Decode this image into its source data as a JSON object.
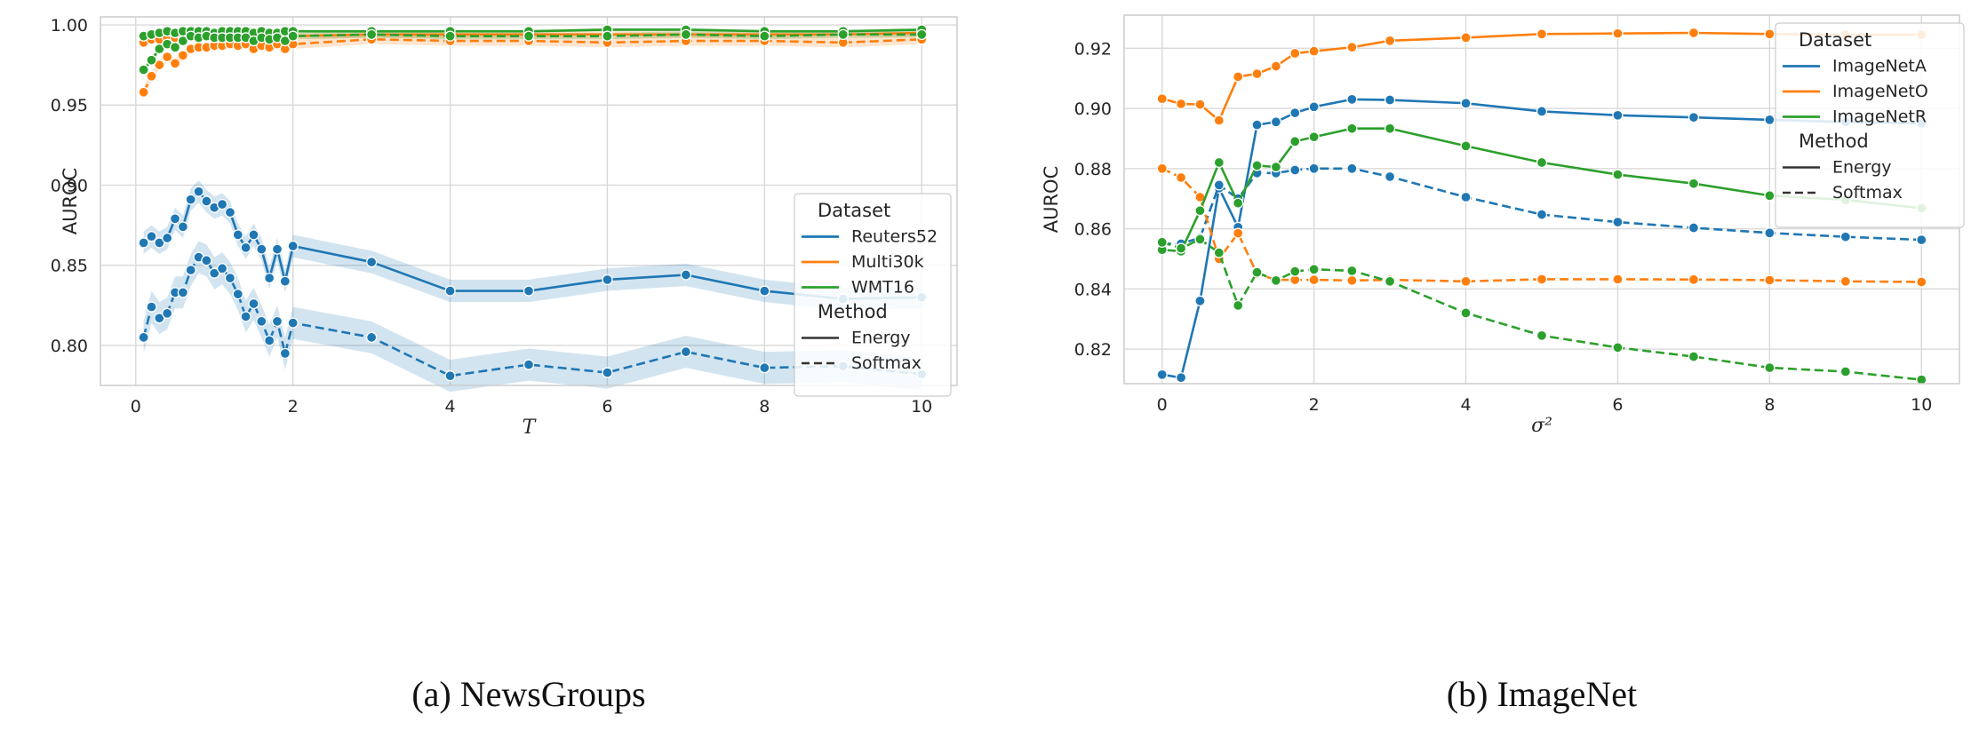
{
  "chart_data": [
    {
      "type": "line",
      "caption": "(a) NewsGroups",
      "xlabel": "T",
      "ylabel": "AUROC",
      "xlim": [
        -0.45,
        10.45
      ],
      "ylim": [
        0.775,
        1.005
      ],
      "xticks": [
        0,
        2,
        4,
        6,
        8,
        10
      ],
      "xtick_labels": [
        "0",
        "2",
        "4",
        "6",
        "8",
        "10"
      ],
      "yticks": [
        0.8,
        0.85,
        0.9,
        0.95,
        1.0
      ],
      "ytick_labels": [
        "0.80",
        "0.85",
        "0.90",
        "0.95",
        "1.00"
      ],
      "grid": true,
      "legend": {
        "placement": "center-right",
        "dataset_title": "Dataset",
        "method_title": "Method",
        "datasets": [
          "Reuters52",
          "Multi30k",
          "WMT16"
        ],
        "methods": [
          "Energy",
          "Softmax"
        ]
      },
      "x": [
        0.1,
        0.2,
        0.3,
        0.4,
        0.5,
        0.6,
        0.7,
        0.8,
        0.9,
        1.0,
        1.1,
        1.2,
        1.3,
        1.4,
        1.5,
        1.6,
        1.7,
        1.8,
        1.9,
        2,
        3,
        4,
        5,
        6,
        7,
        8,
        9,
        10
      ],
      "series": [
        {
          "dataset": "Reuters52",
          "method": "Energy",
          "color": "#1f77b4",
          "dash": "solid",
          "values": [
            0.864,
            0.868,
            0.864,
            0.867,
            0.879,
            0.874,
            0.891,
            0.896,
            0.89,
            0.886,
            0.888,
            0.883,
            0.869,
            0.861,
            0.869,
            0.86,
            0.842,
            0.86,
            0.84,
            0.862,
            0.852,
            0.834,
            0.834,
            0.841,
            0.844,
            0.834,
            0.829,
            0.83
          ],
          "band": 0.007
        },
        {
          "dataset": "Reuters52",
          "method": "Softmax",
          "color": "#1f77b4",
          "dash": "dashed",
          "values": [
            0.805,
            0.824,
            0.817,
            0.82,
            0.833,
            0.833,
            0.847,
            0.855,
            0.853,
            0.845,
            0.848,
            0.842,
            0.832,
            0.818,
            0.826,
            0.815,
            0.803,
            0.815,
            0.795,
            0.814,
            0.805,
            0.781,
            0.788,
            0.783,
            0.796,
            0.786,
            0.787,
            0.782
          ],
          "band": 0.01
        },
        {
          "dataset": "Multi30k",
          "method": "Energy",
          "color": "#ff7f0e",
          "dash": "solid",
          "values": [
            0.989,
            0.991,
            0.991,
            0.992,
            0.992,
            0.992,
            0.993,
            0.993,
            0.993,
            0.993,
            0.993,
            0.993,
            0.993,
            0.993,
            0.993,
            0.993,
            0.993,
            0.993,
            0.993,
            0.993,
            0.994,
            0.994,
            0.994,
            0.994,
            0.994,
            0.994,
            0.994,
            0.995
          ],
          "band": 0.002
        },
        {
          "dataset": "Multi30k",
          "method": "Softmax",
          "color": "#ff7f0e",
          "dash": "dashed",
          "values": [
            0.958,
            0.968,
            0.975,
            0.98,
            0.976,
            0.981,
            0.985,
            0.986,
            0.986,
            0.987,
            0.987,
            0.988,
            0.987,
            0.988,
            0.985,
            0.987,
            0.986,
            0.988,
            0.985,
            0.988,
            0.991,
            0.99,
            0.99,
            0.989,
            0.99,
            0.99,
            0.989,
            0.991
          ],
          "band": 0.003
        },
        {
          "dataset": "WMT16",
          "method": "Energy",
          "color": "#2ca02c",
          "dash": "solid",
          "values": [
            0.993,
            0.994,
            0.995,
            0.996,
            0.995,
            0.996,
            0.996,
            0.996,
            0.996,
            0.995,
            0.996,
            0.996,
            0.996,
            0.996,
            0.995,
            0.996,
            0.995,
            0.995,
            0.996,
            0.996,
            0.996,
            0.996,
            0.996,
            0.997,
            0.997,
            0.996,
            0.996,
            0.997
          ],
          "band": 0.001
        },
        {
          "dataset": "WMT16",
          "method": "Softmax",
          "color": "#2ca02c",
          "dash": "dashed",
          "values": [
            0.972,
            0.978,
            0.985,
            0.988,
            0.986,
            0.99,
            0.993,
            0.992,
            0.993,
            0.992,
            0.992,
            0.992,
            0.992,
            0.992,
            0.99,
            0.992,
            0.991,
            0.992,
            0.99,
            0.993,
            0.994,
            0.993,
            0.993,
            0.993,
            0.994,
            0.993,
            0.994,
            0.994
          ],
          "band": 0.002
        }
      ]
    },
    {
      "type": "line",
      "caption": "(b) ImageNet",
      "xlabel": "σ²",
      "ylabel": "AUROC",
      "xlim": [
        -0.5,
        10.5
      ],
      "ylim": [
        0.8085,
        0.931
      ],
      "xticks": [
        0,
        2,
        4,
        6,
        8,
        10
      ],
      "xtick_labels": [
        "0",
        "2",
        "4",
        "6",
        "8",
        "10"
      ],
      "yticks": [
        0.82,
        0.84,
        0.86,
        0.88,
        0.9,
        0.92
      ],
      "ytick_labels": [
        "0.82",
        "0.84",
        "0.86",
        "0.88",
        "0.90",
        "0.92"
      ],
      "grid": true,
      "legend": {
        "placement": "top-right",
        "dataset_title": "Dataset",
        "method_title": "Method",
        "datasets": [
          "ImageNetA",
          "ImageNetO",
          "ImageNetR"
        ],
        "methods": [
          "Energy",
          "Softmax"
        ]
      },
      "x": [
        0,
        0.25,
        0.5,
        0.75,
        1.0,
        1.25,
        1.5,
        1.75,
        2,
        2.5,
        3,
        4,
        5,
        6,
        7,
        8,
        9,
        10
      ],
      "series": [
        {
          "dataset": "ImageNetA",
          "method": "Energy",
          "color": "#1f77b4",
          "dash": "solid",
          "values": [
            0.8115,
            0.8105,
            0.836,
            0.8735,
            0.8605,
            0.8945,
            0.8955,
            0.8985,
            0.9005,
            0.903,
            0.9028,
            0.9017,
            0.899,
            0.8977,
            0.897,
            0.8962,
            0.8955,
            0.895
          ]
        },
        {
          "dataset": "ImageNetA",
          "method": "Softmax",
          "color": "#1f77b4",
          "dash": "dashed",
          "values": [
            0.855,
            0.855,
            0.857,
            0.8745,
            0.87,
            0.8785,
            0.8785,
            0.8795,
            0.88,
            0.88,
            0.8773,
            0.8705,
            0.8647,
            0.8622,
            0.8603,
            0.8586,
            0.8573,
            0.8563
          ]
        },
        {
          "dataset": "ImageNetO",
          "method": "Energy",
          "color": "#ff7f0e",
          "dash": "solid",
          "values": [
            0.9032,
            0.9015,
            0.9013,
            0.896,
            0.9105,
            0.9115,
            0.914,
            0.9183,
            0.919,
            0.9203,
            0.9225,
            0.9235,
            0.9247,
            0.9249,
            0.9251,
            0.9247,
            0.9245,
            0.9245
          ]
        },
        {
          "dataset": "ImageNetO",
          "method": "Softmax",
          "color": "#ff7f0e",
          "dash": "dashed",
          "values": [
            0.88,
            0.877,
            0.8705,
            0.85,
            0.8585,
            0.845,
            0.843,
            0.843,
            0.843,
            0.8428,
            0.843,
            0.8425,
            0.8432,
            0.8432,
            0.8431,
            0.8429,
            0.8425,
            0.8423
          ]
        },
        {
          "dataset": "ImageNetR",
          "method": "Energy",
          "color": "#2ca02c",
          "dash": "solid",
          "values": [
            0.853,
            0.8525,
            0.866,
            0.882,
            0.8685,
            0.881,
            0.8805,
            0.889,
            0.8905,
            0.8933,
            0.8933,
            0.8875,
            0.882,
            0.878,
            0.875,
            0.871,
            0.8696,
            0.8668
          ]
        },
        {
          "dataset": "ImageNetR",
          "method": "Softmax",
          "color": "#2ca02c",
          "dash": "dashed",
          "values": [
            0.8555,
            0.8535,
            0.8565,
            0.852,
            0.8345,
            0.8455,
            0.8428,
            0.8458,
            0.8465,
            0.846,
            0.8425,
            0.832,
            0.8245,
            0.8205,
            0.8175,
            0.8138,
            0.8125,
            0.8098
          ]
        }
      ]
    }
  ]
}
